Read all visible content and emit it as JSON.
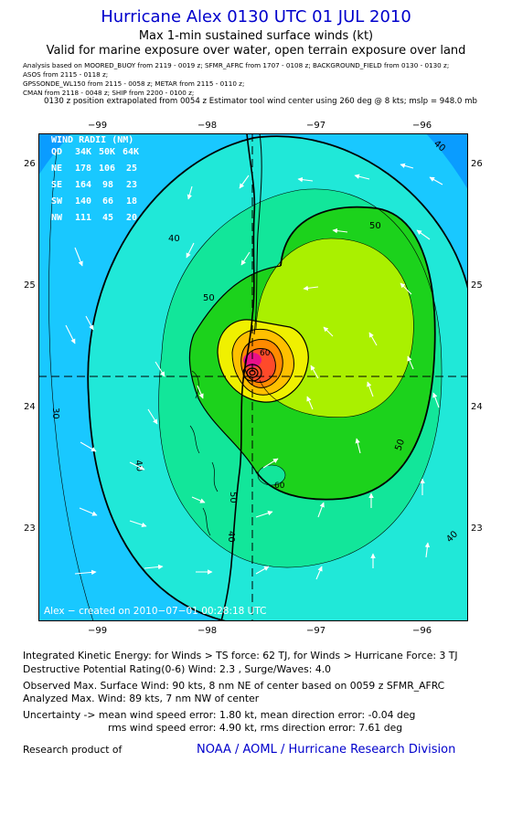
{
  "header": {
    "title": "Hurricane Alex 0130 UTC 01 JUL 2010",
    "subtitle1": "Max 1-min sustained surface winds (kt)",
    "subtitle2": "Valid for marine exposure over water, open terrain exposure over land"
  },
  "analysis_lines": [
    "Analysis based on   MOORED_BUOY from 2119 - 0019 z;   SFMR_AFRC from 1707 - 0108 z;   BACKGROUND_FIELD from 0130 - 0130 z;",
    "ASOS from 2115 - 0118 z;",
    "GPSSONDE_WL150 from 2115 - 0058 z;   METAR from 2115 - 0110 z;",
    "CMAN from 2118 - 0048 z;   SHIP from 2200 - 0100 z;"
  ],
  "position_note": "0130 z position extrapolated from 0054 z Estimator tool wind center using 260 deg @ 8 kts; mslp = 948.0 mb",
  "axes": {
    "lon_ticks": [
      "−99",
      "−98",
      "−97",
      "−96"
    ],
    "lat_ticks": [
      "26",
      "25",
      "24",
      "23"
    ]
  },
  "wind_radii": {
    "title": "WIND RADII (NM)",
    "header": [
      "QD",
      "34K",
      "50K",
      "64K"
    ],
    "rows": [
      [
        "NE",
        "178",
        "106",
        "25"
      ],
      [
        "SE",
        "164",
        "98",
        "23"
      ],
      [
        "SW",
        "140",
        "66",
        "18"
      ],
      [
        "NW",
        "111",
        "45",
        "20"
      ]
    ]
  },
  "contour_labels": [
    "40",
    "50",
    "50",
    "30",
    "40",
    "60",
    "40",
    "50",
    "40",
    "50",
    "40",
    "60"
  ],
  "created": "Alex − created on 2010−07−01 00:28:18 UTC",
  "stats": {
    "ike": "Integrated Kinetic Energy:  for Winds > TS force: 62 TJ,  for Winds > Hurricane Force: 3 TJ",
    "dpr": "Destructive Potential Rating(0-6)   Wind: 2.3 , Surge/Waves: 4.0",
    "observed": "Observed Max. Surface Wind: 90 kts, 8 nm NE of center based on 0059 z SFMR_AFRC",
    "analyzed": "Analyzed Max. Wind: 89 kts, 7 nm NW of center",
    "uncert1": "Uncertainty -> mean wind speed error: 1.80 kt,   mean direction error:  -0.04 deg",
    "uncert2": "rms wind speed error: 4.90 kt,   rms direction error: 7.61 deg"
  },
  "footer": {
    "research": "Research product of",
    "org": "NOAA / AOML / Hurricane Research Division"
  },
  "colors": {
    "title": "#0000cc",
    "w30": "#0a9cff",
    "w35": "#19c8ff",
    "w40": "#20e8d8",
    "w45": "#12e69a",
    "w50": "#1cd21c",
    "w55": "#aaf000",
    "w60": "#f0f000",
    "w65": "#ffc000",
    "w70": "#ff8a00",
    "w80": "#ff4a2a",
    "w90": "#e8108a"
  }
}
